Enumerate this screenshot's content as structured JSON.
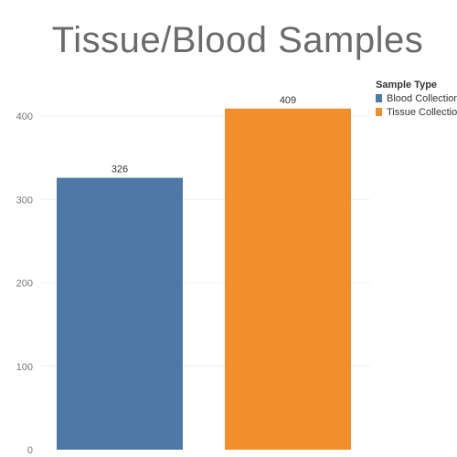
{
  "chart_data": {
    "type": "bar",
    "title": "Tissue/Blood Samples",
    "categories": [
      "Blood Collection",
      "Tissue Collection"
    ],
    "values": [
      326,
      409
    ],
    "data_labels": [
      "326",
      "409"
    ],
    "colors": [
      "#4e79a7",
      "#f28e2b"
    ],
    "yticks": [
      0,
      100,
      200,
      300,
      400
    ],
    "ylim": [
      0,
      420
    ],
    "grid": true,
    "legend": {
      "title": "Sample Type",
      "placement": "top-right",
      "entries": [
        "Blood Collection",
        "Tissue Collection"
      ]
    }
  }
}
